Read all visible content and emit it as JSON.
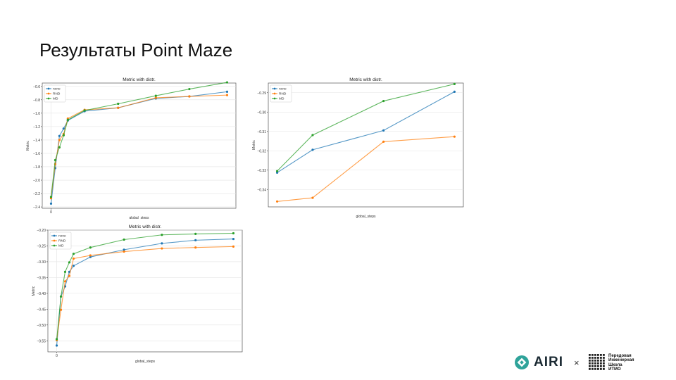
{
  "slide": {
    "title": "Результаты Point Maze"
  },
  "chart_data": [
    {
      "type": "line",
      "title": "Metric with distr.",
      "xlabel": "global_steps",
      "ylabel": "Metric",
      "x": [
        0,
        1,
        2,
        3,
        4,
        8,
        16,
        25,
        33,
        42
      ],
      "xticks": [
        "0"
      ],
      "xtick_positions": [
        0
      ],
      "ylim": [
        -2.42,
        -0.55
      ],
      "yticks": [
        -2.4,
        -2.2,
        -2.0,
        -1.8,
        -1.6,
        -1.4,
        -1.2,
        -1.0,
        -0.8,
        -0.6
      ],
      "ytick_labels": [
        "−2.4",
        "−2.2",
        "−2.0",
        "−1.8",
        "−1.6",
        "−1.4",
        "−1.2",
        "−1.0",
        "−0.8",
        "−0.6"
      ],
      "grid": true,
      "legend": "top-left",
      "series": [
        {
          "name": "none",
          "color": "#1f77b4",
          "values": [
            -2.35,
            -1.82,
            -1.34,
            -1.23,
            -1.11,
            -0.97,
            -0.92,
            -0.78,
            -0.75,
            -0.68
          ]
        },
        {
          "name": "RND",
          "color": "#ff7f0e",
          "values": [
            -2.27,
            -1.76,
            -1.4,
            -1.31,
            -1.08,
            -0.95,
            -0.92,
            -0.77,
            -0.75,
            -0.73
          ]
        },
        {
          "name": "MD",
          "color": "#2ca02c",
          "values": [
            -2.25,
            -1.7,
            -1.51,
            -1.33,
            -1.1,
            -0.96,
            -0.86,
            -0.74,
            -0.64,
            -0.54
          ]
        }
      ]
    },
    {
      "type": "line",
      "title": "Metric with distr.",
      "xlabel": "global_steps",
      "ylabel": "Metric",
      "x": [
        0,
        1,
        3,
        5
      ],
      "xticks": [],
      "xtick_positions": [],
      "ylim": [
        -0.349,
        -0.285
      ],
      "yticks": [
        -0.34,
        -0.33,
        -0.32,
        -0.31,
        -0.3,
        -0.29
      ],
      "ytick_labels": [
        "−0.34",
        "−0.33",
        "−0.32",
        "−0.31",
        "−0.30",
        "−0.29"
      ],
      "grid": true,
      "legend": "top-left",
      "series": [
        {
          "name": "none",
          "color": "#1f77b4",
          "values": [
            -0.3313,
            -0.3195,
            -0.3095,
            -0.2895
          ]
        },
        {
          "name": "RND",
          "color": "#ff7f0e",
          "values": [
            -0.3462,
            -0.3443,
            -0.3153,
            -0.3127
          ]
        },
        {
          "name": "MD",
          "color": "#2ca02c",
          "values": [
            -0.3305,
            -0.3119,
            -0.2943,
            -0.2855
          ]
        }
      ]
    },
    {
      "type": "line",
      "title": "Metric with distr.",
      "xlabel": "global_steps",
      "ylabel": "Metric",
      "x": [
        0,
        1,
        2,
        3,
        4,
        8,
        16,
        25,
        33,
        42
      ],
      "xticks": [
        "0"
      ],
      "xtick_positions": [
        0
      ],
      "ylim": [
        -0.585,
        -0.2
      ],
      "yticks": [
        -0.55,
        -0.5,
        -0.45,
        -0.4,
        -0.35,
        -0.3,
        -0.25,
        -0.2
      ],
      "ytick_labels": [
        "−0.55",
        "−0.50",
        "−0.45",
        "−0.40",
        "−0.35",
        "−0.30",
        "−0.25",
        "−0.20"
      ],
      "grid": true,
      "legend": "top-left",
      "series": [
        {
          "name": "none",
          "color": "#1f77b4",
          "values": [
            -0.565,
            -0.41,
            -0.378,
            -0.332,
            -0.313,
            -0.285,
            -0.262,
            -0.242,
            -0.232,
            -0.228
          ]
        },
        {
          "name": "RND",
          "color": "#ff7f0e",
          "values": [
            -0.548,
            -0.452,
            -0.362,
            -0.345,
            -0.29,
            -0.28,
            -0.268,
            -0.258,
            -0.255,
            -0.252
          ]
        },
        {
          "name": "MD",
          "color": "#2ca02c",
          "values": [
            -0.545,
            -0.41,
            -0.332,
            -0.302,
            -0.275,
            -0.255,
            -0.23,
            -0.215,
            -0.212,
            -0.21
          ]
        }
      ]
    }
  ],
  "footer": {
    "airi_label": "AIRI",
    "times": "×",
    "school_lines": [
      "Передовая",
      "Инженерная",
      "Школа",
      "ИТМО"
    ]
  }
}
